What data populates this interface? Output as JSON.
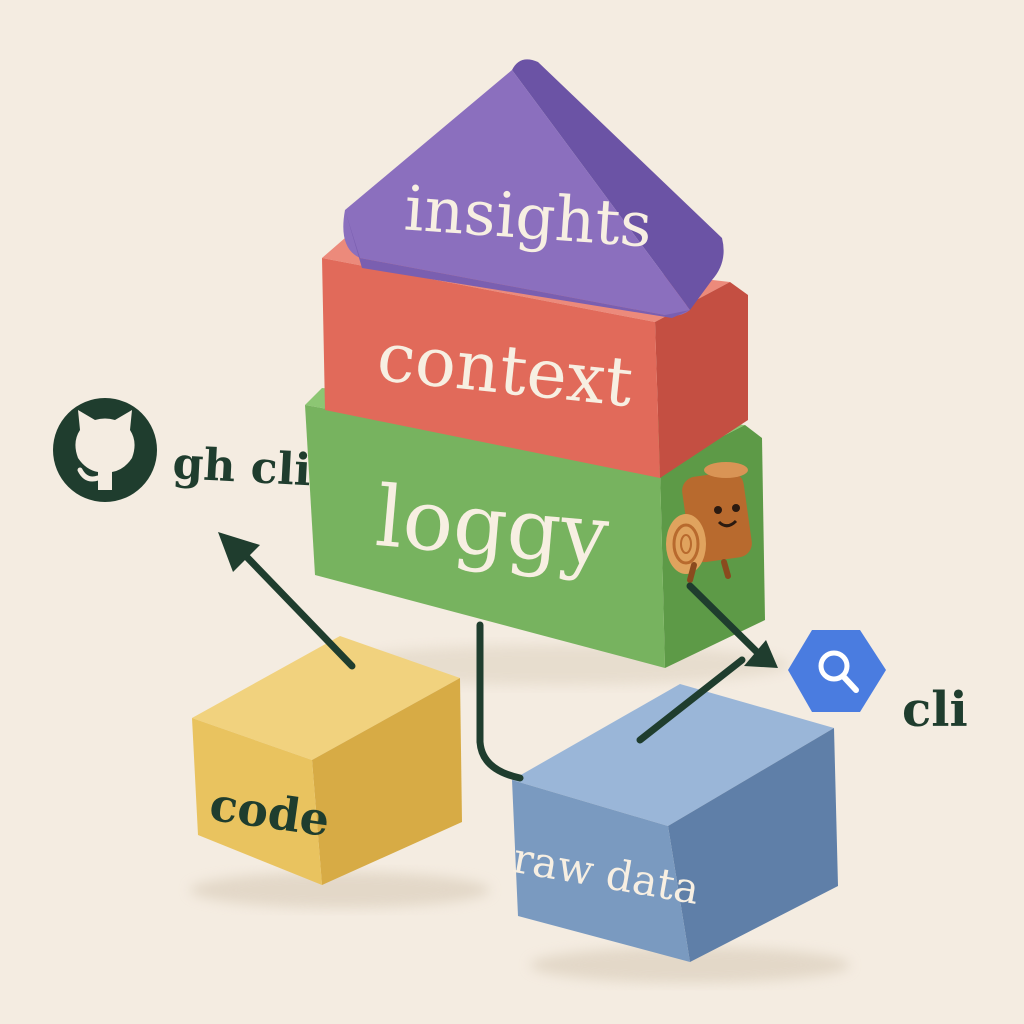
{
  "layers": {
    "top": "insights",
    "middle": "context",
    "base": "loggy"
  },
  "sources": {
    "code": "code",
    "raw_data": "raw data"
  },
  "tools": {
    "github": "gh cli",
    "bigquery": "cli"
  },
  "icons": {
    "github": "github-logo-icon",
    "bigquery": "bigquery-hexagon-icon",
    "mascot": "log-mascot-icon"
  },
  "colors": {
    "background": "#f4ece1",
    "insights": "#8b6fbe",
    "context": "#e16a5a",
    "loggy": "#77b35f",
    "code": "#e9c35f",
    "raw_data": "#7a9ac0",
    "ink": "#1f3d2e",
    "label": "#f7efe2",
    "bigquery": "#4a7ce0"
  }
}
